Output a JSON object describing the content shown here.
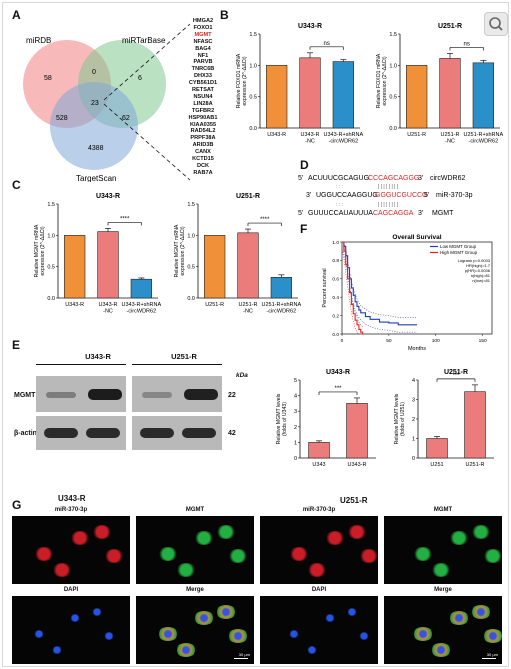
{
  "panels": {
    "A": "A",
    "B": "B",
    "C": "C",
    "D": "D",
    "E": "E",
    "F": "F",
    "G": "G"
  },
  "venn": {
    "sets": [
      "miRDB",
      "miRTarBase",
      "TargetScan"
    ],
    "regions": {
      "miRDB_only": "58",
      "miRTarBase_only": "6",
      "TargetScan_only": "4388",
      "miRDB_miRTarBase": "0",
      "all_three": "23",
      "miRDB_TargetScan": "528",
      "miRTarBase_TargetScan": "62"
    },
    "colors": {
      "miRDB": "#f08080",
      "miRTarBase": "#7fc98f",
      "TargetScan": "#7fa7d8"
    }
  },
  "genes": [
    "HMGA2",
    "FOXO1",
    "MGMT",
    "NFASC",
    "BAG4",
    "NF1",
    "PARVB",
    "TNRC6B",
    "DHX33",
    "CYB561D1",
    "RETSAT",
    "NSUN4",
    "LIN28A",
    "TGFBR2",
    "HSP90AB1",
    "KIAA0355",
    "RAD54L2",
    "PRPF38A",
    "ARID3B",
    "CANX",
    "KCTD15",
    "DCK",
    "RAB7A"
  ],
  "highlight_gene": "MGMT",
  "colors": {
    "orange": "#f0913a",
    "salmon": "#ec7b7b",
    "blue": "#2b8fc9",
    "red": "#d62728"
  },
  "chart_data": [
    {
      "panel": "B",
      "type": "bar",
      "title": "U343-R",
      "ylabel": "Relative FOXO1 mRNA expression (2^-ΔΔCt)",
      "categories": [
        "U343-R",
        "U343-R -NC",
        "U343-R+shRNA -circWDR62"
      ],
      "values": [
        1.0,
        1.12,
        1.06
      ],
      "errors": [
        0.0,
        0.08,
        0.03
      ],
      "ylim": [
        0,
        1.5
      ],
      "yticks": [
        "0.0",
        "0.5",
        "1.0",
        "1.5"
      ],
      "annotation": "ns"
    },
    {
      "panel": "B",
      "type": "bar",
      "title": "U251-R",
      "ylabel": "Relative FOXO1 mRNA expression (2^-ΔΔCt)",
      "categories": [
        "U251-R",
        "U251-R -NC",
        "U251-R+shRNA -circWDR62"
      ],
      "values": [
        1.0,
        1.11,
        1.04
      ],
      "errors": [
        0.0,
        0.08,
        0.04
      ],
      "ylim": [
        0,
        1.5
      ],
      "yticks": [
        "0.0",
        "0.5",
        "1.0",
        "1.5"
      ],
      "annotation": "ns"
    },
    {
      "panel": "C",
      "type": "bar",
      "title": "U343-R",
      "ylabel": "Relative MGMT mRNA expression (2^-ΔΔCt)",
      "categories": [
        "U343-R",
        "U343-R -NC",
        "U343-R+shRNA -circWDR62"
      ],
      "values": [
        1.0,
        1.06,
        0.3
      ],
      "errors": [
        0.0,
        0.05,
        0.02
      ],
      "ylim": [
        0,
        1.5
      ],
      "yticks": [
        "0.0",
        "0.5",
        "1.0",
        "1.5"
      ],
      "annotation": "****"
    },
    {
      "panel": "C",
      "type": "bar",
      "title": "U251-R",
      "ylabel": "Relative MGMT mRNA expression (2^-ΔΔCt)",
      "categories": [
        "U251-R",
        "U251-R -NC",
        "U251-R+shRNA -circWDR62"
      ],
      "values": [
        1.0,
        1.04,
        0.33
      ],
      "errors": [
        0.0,
        0.06,
        0.04
      ],
      "ylim": [
        0,
        1.5
      ],
      "yticks": [
        "0.0",
        "0.5",
        "1.0",
        "1.5"
      ],
      "annotation": "****"
    },
    {
      "panel": "E",
      "type": "bar",
      "title": "U343-R",
      "ylabel": "Relative MGMT levels (folds of U343)",
      "categories": [
        "U343",
        "U343-R"
      ],
      "values": [
        1.0,
        3.5
      ],
      "errors": [
        0.1,
        0.35
      ],
      "ylim": [
        0,
        5
      ],
      "yticks": [
        "0",
        "1",
        "2",
        "3",
        "4",
        "5"
      ],
      "annotation": "***"
    },
    {
      "panel": "E",
      "type": "bar",
      "title": "U251-R",
      "ylabel": "Relative MGMT levels (folds of U251)",
      "categories": [
        "U251",
        "U251-R"
      ],
      "values": [
        1.0,
        3.4
      ],
      "errors": [
        0.1,
        0.35
      ],
      "ylim": [
        0,
        4
      ],
      "yticks": [
        "0",
        "1",
        "2",
        "3",
        "4"
      ],
      "annotation": "***"
    },
    {
      "panel": "F",
      "type": "line",
      "title": "Overall Survival",
      "xlabel": "Months",
      "ylabel": "Percent survival",
      "xticks": [
        "0",
        "50",
        "100",
        "150"
      ],
      "yticks": [
        "0.0",
        "0.2",
        "0.4",
        "0.6",
        "0.8",
        "1.0"
      ],
      "xlim": [
        0,
        160
      ],
      "ylim": [
        0,
        1
      ],
      "series": [
        {
          "name": "Low MGMT Group",
          "color": "#1f3fb5",
          "x": [
            0,
            2,
            4,
            6,
            8,
            10,
            12,
            14,
            16,
            18,
            20,
            25,
            30,
            40,
            50,
            60,
            80
          ],
          "y": [
            1.0,
            0.95,
            0.85,
            0.72,
            0.6,
            0.5,
            0.42,
            0.35,
            0.3,
            0.26,
            0.23,
            0.19,
            0.16,
            0.13,
            0.12,
            0.1,
            0.1
          ]
        },
        {
          "name": "High MGMT Group",
          "color": "#d62728",
          "x": [
            0,
            2,
            4,
            6,
            8,
            10,
            12,
            14,
            16,
            18,
            20,
            22
          ],
          "y": [
            1.0,
            0.9,
            0.75,
            0.6,
            0.45,
            0.32,
            0.22,
            0.15,
            0.1,
            0.05,
            0.02,
            0.0
          ]
        }
      ],
      "legend_stats": [
        "Logrank p=0.0033",
        "HR(high)=1.7",
        "p(HR)=0.0036",
        "n(high)=81",
        "n(low)=81"
      ]
    }
  ],
  "sequence": {
    "line1_prefix": "5'",
    "line1_seq": "ACUUUCGCAGUG",
    "line1_red": "CCCAGCAGGG",
    "line1_end": "3'",
    "line1_label": "circWDR62",
    "line2_prefix": "3'",
    "line2_seq": "UGGUCCAAGGUG",
    "line2_red": "GGGUCGUCCG",
    "line2_end": "5'",
    "line2_label": "miR-370-3p",
    "line3_prefix": "5'",
    "line3_seq": "GUUUCCAUAUUUA",
    "line3_red": "CAGCAGGA",
    "line3_end": "3'",
    "line3_label": "MGMT"
  },
  "western": {
    "lane_groups": [
      "U343-R",
      "U251-R"
    ],
    "unit": "kDa",
    "bands": [
      {
        "label": "MGMT",
        "kda": "22"
      },
      {
        "label": "β-actin",
        "kda": "42"
      }
    ]
  },
  "micrographs": {
    "groups": [
      "U343-R",
      "U251-R"
    ],
    "tiles": [
      "miR-370-3p",
      "MGMT",
      "DAPI",
      "Merge"
    ],
    "scale_bar": "30 μm"
  }
}
